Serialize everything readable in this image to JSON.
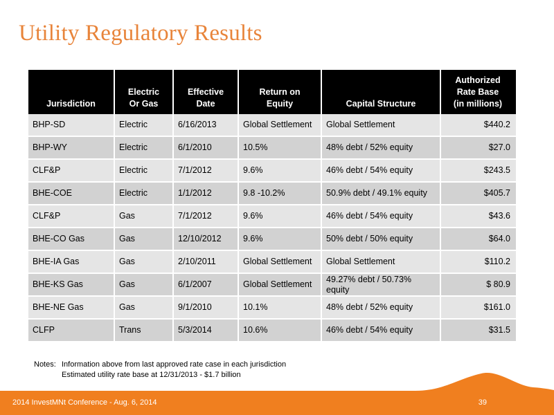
{
  "title": "Utility Regulatory Results",
  "table": {
    "headers": [
      [
        "",
        "Jurisdiction"
      ],
      [
        "Electric",
        "Or Gas"
      ],
      [
        "Effective",
        "Date"
      ],
      [
        "Return on",
        "Equity"
      ],
      [
        "",
        "Capital Structure"
      ],
      [
        "Authorized",
        "Rate Base",
        "(in millions)"
      ]
    ],
    "rows": [
      [
        "BHP-SD",
        "Electric",
        "6/16/2013",
        "Global Settlement",
        "Global Settlement",
        "$440.2"
      ],
      [
        "BHP-WY",
        "Electric",
        "6/1/2010",
        "10.5%",
        "48% debt / 52% equity",
        "$27.0"
      ],
      [
        "CLF&P",
        "Electric",
        "7/1/2012",
        "9.6%",
        "46% debt / 54% equity",
        "$243.5"
      ],
      [
        "BHE-COE",
        "Electric",
        "1/1/2012",
        "9.8 -10.2%",
        "50.9% debt / 49.1% equity",
        "$405.7"
      ],
      [
        "CLF&P",
        "Gas",
        "7/1/2012",
        "9.6%",
        "46% debt / 54% equity",
        "$43.6"
      ],
      [
        "BHE-CO Gas",
        "Gas",
        "12/10/2012",
        "9.6%",
        "50% debt / 50% equity",
        "$64.0"
      ],
      [
        "BHE-IA Gas",
        "Gas",
        "2/10/2011",
        "Global Settlement",
        "Global Settlement",
        "$110.2"
      ],
      [
        "BHE-KS Gas",
        "Gas",
        "6/1/2007",
        "Global Settlement",
        "49.27% debt / 50.73% equity",
        "$ 80.9"
      ],
      [
        "BHE-NE Gas",
        "Gas",
        "9/1/2010",
        "10.1%",
        "48% debt / 52% equity",
        "$161.0"
      ],
      [
        "CLFP",
        "Trans",
        "5/3/2014",
        "10.6%",
        "46% debt / 54% equity",
        "$31.5"
      ]
    ]
  },
  "notes": {
    "label": "Notes:",
    "line1": "Information above from last approved rate case in each jurisdiction",
    "line2": "Estimated utility rate base at 12/31/2013 - $1.7 billion"
  },
  "footer": {
    "left_text": "2014 InvestMNt Conference - Aug. 6, 2014",
    "page_number": "39"
  },
  "colors": {
    "title": "#e8843a",
    "footer_bar": "#f07f1f",
    "header_bg": "#000000",
    "row_light": "#e5e5e5",
    "row_dark": "#d2d2d2"
  }
}
